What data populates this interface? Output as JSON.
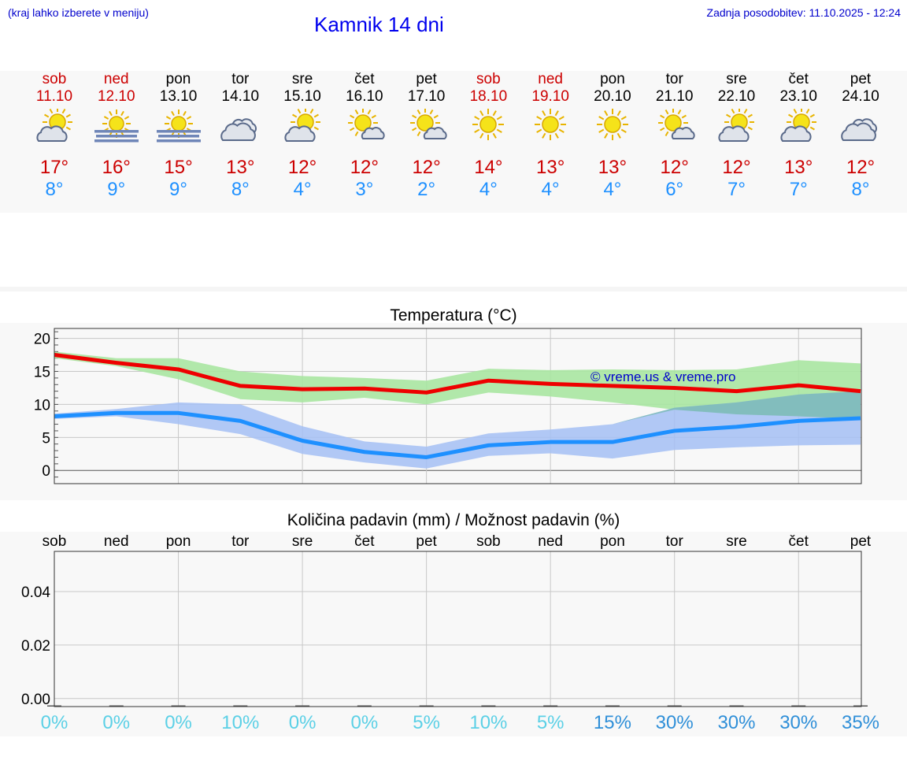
{
  "header": {
    "hint": "(kraj lahko izberete v meniju)",
    "title": "Kamnik 14 dni",
    "updated": "Zadnja posodobitev: 11.10.2025 - 12:24"
  },
  "days": [
    {
      "name": "sob",
      "date": "11.10",
      "weekend": true,
      "icon": "sun-cloud-icon",
      "max": "17°",
      "min": "8°"
    },
    {
      "name": "ned",
      "date": "12.10",
      "weekend": true,
      "icon": "sun-fog-icon",
      "max": "16°",
      "min": "9°"
    },
    {
      "name": "pon",
      "date": "13.10",
      "weekend": false,
      "icon": "sun-fog-icon",
      "max": "15°",
      "min": "9°"
    },
    {
      "name": "tor",
      "date": "14.10",
      "weekend": false,
      "icon": "cloudy-icon",
      "max": "13°",
      "min": "8°"
    },
    {
      "name": "sre",
      "date": "15.10",
      "weekend": false,
      "icon": "sun-cloud-icon",
      "max": "12°",
      "min": "4°"
    },
    {
      "name": "čet",
      "date": "16.10",
      "weekend": false,
      "icon": "sun-small-cloud-icon",
      "max": "12°",
      "min": "3°"
    },
    {
      "name": "pet",
      "date": "17.10",
      "weekend": false,
      "icon": "sun-small-cloud-icon",
      "max": "12°",
      "min": "2°"
    },
    {
      "name": "sob",
      "date": "18.10",
      "weekend": true,
      "icon": "sun-icon",
      "max": "14°",
      "min": "4°"
    },
    {
      "name": "ned",
      "date": "19.10",
      "weekend": true,
      "icon": "sun-icon",
      "max": "13°",
      "min": "4°"
    },
    {
      "name": "pon",
      "date": "20.10",
      "weekend": false,
      "icon": "sun-icon",
      "max": "13°",
      "min": "4°"
    },
    {
      "name": "tor",
      "date": "21.10",
      "weekend": false,
      "icon": "sun-small-cloud-icon",
      "max": "12°",
      "min": "6°"
    },
    {
      "name": "sre",
      "date": "22.10",
      "weekend": false,
      "icon": "sun-cloud-icon",
      "max": "12°",
      "min": "7°"
    },
    {
      "name": "čet",
      "date": "23.10",
      "weekend": false,
      "icon": "sun-cloud-icon",
      "max": "13°",
      "min": "7°"
    },
    {
      "name": "pet",
      "date": "24.10",
      "weekend": false,
      "icon": "cloudy-icon",
      "max": "12°",
      "min": "8°"
    }
  ],
  "colors": {
    "max": "#ee0000",
    "min": "#1e90ff",
    "max_band": "#a8e6a1",
    "min_band": "#a4c0f4",
    "weekend": "#cc0000",
    "pct_low": "#5bd0e6",
    "pct_high": "#2f8fd8"
  },
  "chart_data": [
    {
      "type": "line",
      "title": "Temperatura (°C)",
      "watermark": "© vreme.us & vreme.pro",
      "ylim": [
        -2,
        21.5
      ],
      "yticks": [
        "20",
        "15",
        "10",
        "5",
        "0"
      ],
      "x": [
        "11.10",
        "12.10",
        "13.10",
        "14.10",
        "15.10",
        "16.10",
        "17.10",
        "18.10",
        "19.10",
        "20.10",
        "21.10",
        "22.10",
        "23.10",
        "24.10"
      ],
      "series": [
        {
          "role": "max",
          "values": [
            17.5,
            16.3,
            15.3,
            12.8,
            12.3,
            12.4,
            11.8,
            13.6,
            13.1,
            12.8,
            12.5,
            12.0,
            12.9,
            12.0
          ],
          "band_hi": [
            18.0,
            17.0,
            17.0,
            15.0,
            14.3,
            14.0,
            13.6,
            15.4,
            15.2,
            15.3,
            15.2,
            15.3,
            16.7,
            16.2
          ],
          "band_lo": [
            17.0,
            15.8,
            13.8,
            10.8,
            10.3,
            11.0,
            10.0,
            11.8,
            11.2,
            10.3,
            9.2,
            8.5,
            8.2,
            7.8
          ]
        },
        {
          "role": "min",
          "values": [
            8.2,
            8.7,
            8.7,
            7.5,
            4.5,
            2.8,
            2.0,
            3.8,
            4.3,
            4.3,
            6.0,
            6.6,
            7.5,
            7.9
          ],
          "band_hi": [
            8.6,
            9.3,
            10.3,
            10.0,
            6.7,
            4.4,
            3.6,
            5.6,
            6.2,
            7.0,
            9.5,
            10.3,
            11.5,
            12.0
          ],
          "band_lo": [
            7.8,
            8.2,
            7.0,
            5.5,
            2.5,
            1.2,
            0.3,
            2.2,
            2.6,
            1.8,
            3.1,
            3.5,
            3.8,
            3.9
          ]
        }
      ]
    },
    {
      "type": "bar",
      "title": "Količina padavin (mm) / Možnost padavin (%)",
      "ylim": [
        -0.003,
        0.055
      ],
      "yticks": [
        "0.04",
        "0.02",
        "0.00"
      ],
      "categories": [
        "sob",
        "ned",
        "pon",
        "tor",
        "sre",
        "čet",
        "pet",
        "sob",
        "ned",
        "pon",
        "tor",
        "sre",
        "čet",
        "pet"
      ],
      "values": [
        0,
        0,
        0,
        0,
        0,
        0,
        0,
        0,
        0,
        0,
        0,
        0,
        0,
        0
      ],
      "probability": [
        "0%",
        "0%",
        "0%",
        "10%",
        "0%",
        "0%",
        "5%",
        "10%",
        "5%",
        "15%",
        "30%",
        "30%",
        "30%",
        "35%"
      ]
    }
  ]
}
